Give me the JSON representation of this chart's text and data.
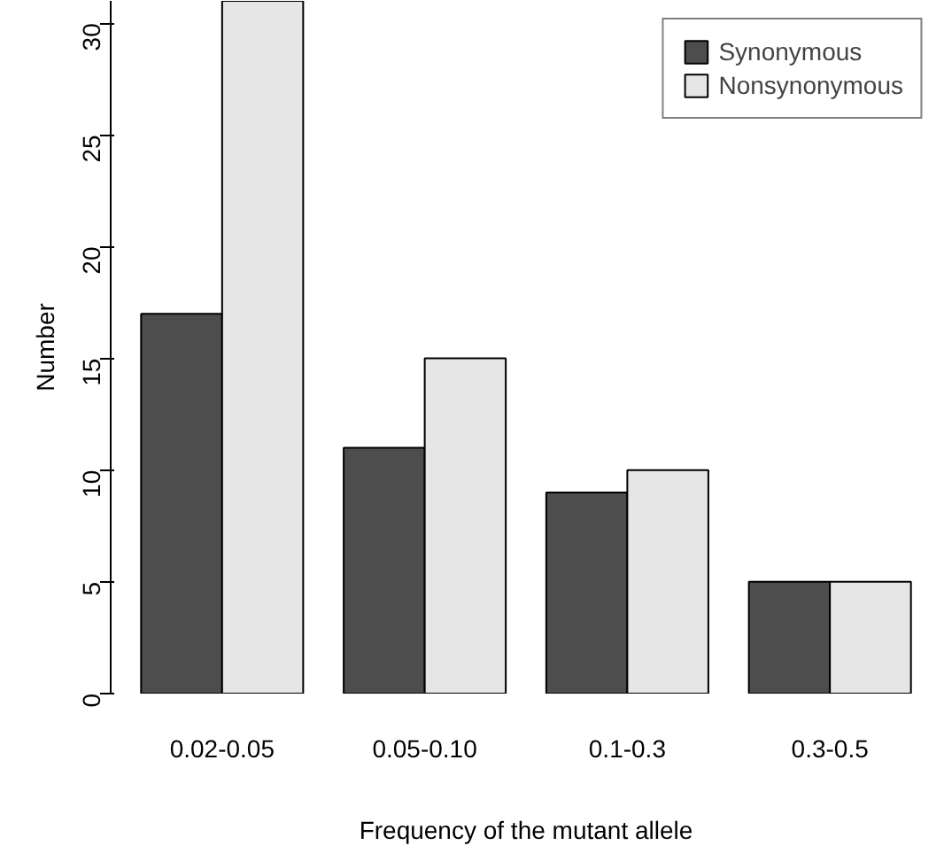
{
  "chart_data": {
    "type": "bar",
    "xlabel": "Frequency of the mutant allele",
    "ylabel": "Number",
    "categories": [
      "0.02-0.05",
      "0.05-0.10",
      "0.1-0.3",
      "0.3-0.5"
    ],
    "series": [
      {
        "name": "Synonymous",
        "color": "#4d4d4d",
        "values": [
          17,
          11,
          9,
          5
        ]
      },
      {
        "name": "Nonsynonymous",
        "color": "#e6e6e6",
        "values": [
          31,
          15,
          10,
          5
        ]
      }
    ],
    "ylim": [
      0,
      31
    ],
    "yticks": [
      0,
      5,
      10,
      15,
      20,
      25,
      30
    ],
    "grid": false,
    "legend": "top right"
  }
}
